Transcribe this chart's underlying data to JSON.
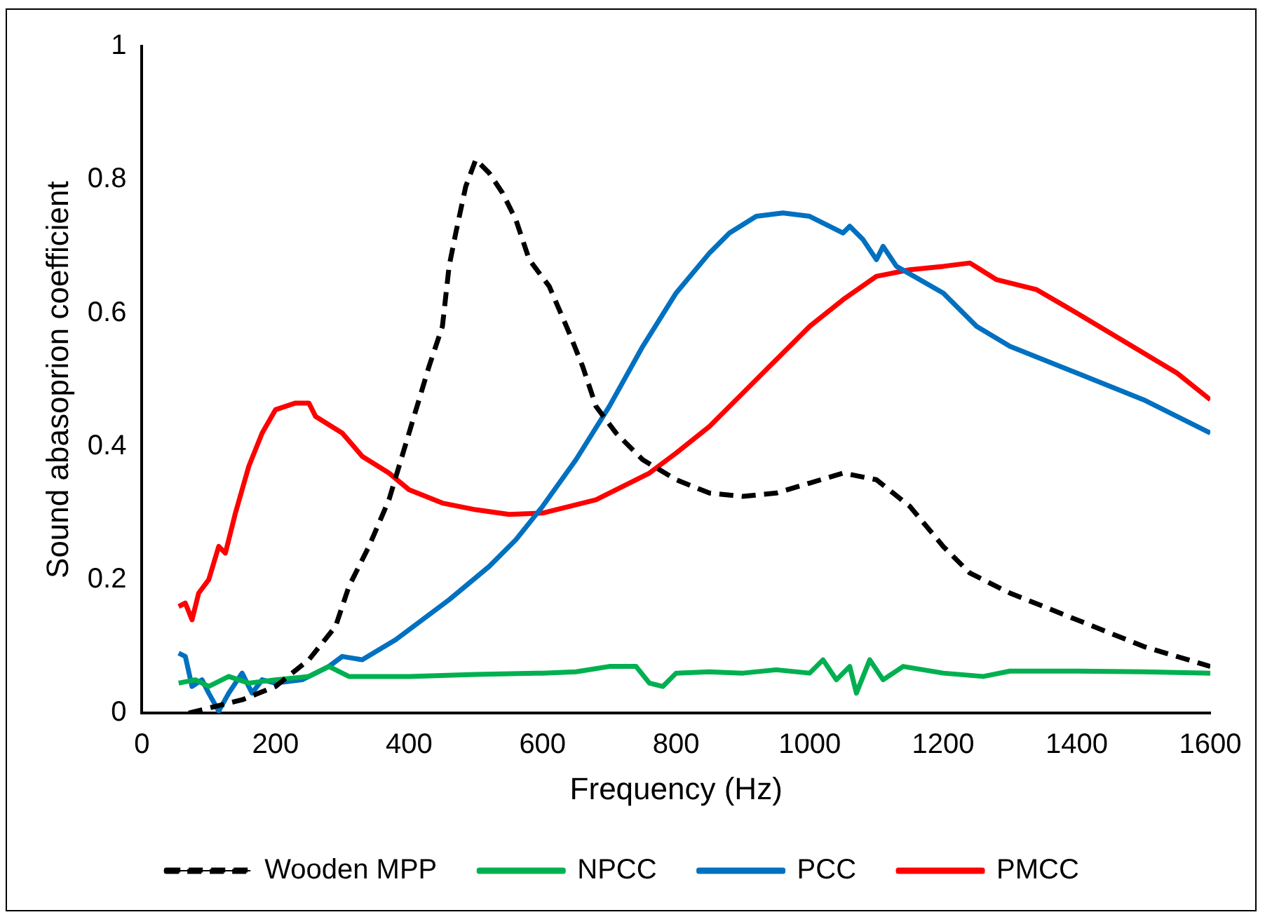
{
  "chart_data": {
    "type": "line",
    "xlabel": "Frequency (Hz)",
    "ylabel": "Sound abasoprion coefficient",
    "xlim": [
      0,
      1600
    ],
    "xticks": [
      0,
      200,
      400,
      600,
      800,
      1000,
      1200,
      1400,
      1600
    ],
    "ylim": [
      0,
      1
    ],
    "yticks": [
      0,
      0.2,
      0.4,
      0.6,
      0.8,
      1
    ],
    "grid": false,
    "legend": "bottom",
    "marker": "none",
    "series": [
      {
        "name": "Wooden MPP",
        "color": "#000000",
        "line_style": "dashed",
        "x": [
          70,
          150,
          200,
          250,
          290,
          310,
          340,
          370,
          400,
          430,
          450,
          460,
          470,
          485,
          500,
          520,
          540,
          560,
          580,
          610,
          640,
          660,
          680,
          710,
          750,
          800,
          850,
          900,
          950,
          1000,
          1050,
          1100,
          1150,
          1200,
          1240,
          1300,
          1400,
          1500,
          1600
        ],
        "values": [
          0,
          0.02,
          0.04,
          0.08,
          0.13,
          0.19,
          0.25,
          0.32,
          0.42,
          0.52,
          0.58,
          0.67,
          0.72,
          0.79,
          0.83,
          0.81,
          0.78,
          0.74,
          0.68,
          0.64,
          0.57,
          0.52,
          0.46,
          0.42,
          0.38,
          0.35,
          0.33,
          0.325,
          0.33,
          0.345,
          0.36,
          0.35,
          0.31,
          0.25,
          0.21,
          0.18,
          0.14,
          0.1,
          0.07
        ]
      },
      {
        "name": "NPCC",
        "color": "#00b050",
        "line_style": "solid",
        "x": [
          55,
          80,
          100,
          130,
          160,
          200,
          250,
          280,
          310,
          400,
          500,
          600,
          650,
          700,
          740,
          760,
          780,
          800,
          850,
          900,
          950,
          1000,
          1020,
          1040,
          1060,
          1070,
          1090,
          1110,
          1140,
          1200,
          1260,
          1300,
          1400,
          1500,
          1600
        ],
        "values": [
          0.045,
          0.05,
          0.04,
          0.055,
          0.045,
          0.05,
          0.055,
          0.07,
          0.055,
          0.055,
          0.058,
          0.06,
          0.062,
          0.07,
          0.07,
          0.045,
          0.04,
          0.06,
          0.062,
          0.06,
          0.065,
          0.06,
          0.08,
          0.05,
          0.07,
          0.03,
          0.08,
          0.05,
          0.07,
          0.06,
          0.055,
          0.063,
          0.063,
          0.062,
          0.06
        ]
      },
      {
        "name": "PCC",
        "color": "#0070c0",
        "line_style": "solid",
        "x": [
          55,
          65,
          75,
          90,
          100,
          115,
          130,
          150,
          165,
          180,
          200,
          240,
          280,
          300,
          330,
          380,
          420,
          460,
          520,
          560,
          600,
          650,
          700,
          750,
          800,
          850,
          880,
          920,
          960,
          1000,
          1030,
          1050,
          1060,
          1080,
          1100,
          1110,
          1130,
          1200,
          1250,
          1300,
          1400,
          1500,
          1600
        ],
        "values": [
          0.09,
          0.085,
          0.04,
          0.05,
          0.03,
          0.003,
          0.03,
          0.06,
          0.03,
          0.05,
          0.045,
          0.05,
          0.07,
          0.085,
          0.08,
          0.11,
          0.14,
          0.17,
          0.22,
          0.26,
          0.31,
          0.38,
          0.46,
          0.55,
          0.63,
          0.69,
          0.72,
          0.745,
          0.75,
          0.745,
          0.73,
          0.72,
          0.73,
          0.71,
          0.68,
          0.7,
          0.67,
          0.63,
          0.58,
          0.55,
          0.51,
          0.47,
          0.42
        ]
      },
      {
        "name": "PMCC",
        "color": "#ff0000",
        "line_style": "solid",
        "x": [
          55,
          65,
          75,
          85,
          100,
          115,
          125,
          140,
          160,
          180,
          200,
          230,
          250,
          260,
          300,
          330,
          370,
          400,
          450,
          500,
          550,
          600,
          640,
          680,
          720,
          760,
          800,
          850,
          900,
          950,
          1000,
          1050,
          1100,
          1150,
          1200,
          1240,
          1280,
          1340,
          1400,
          1450,
          1500,
          1550,
          1600
        ],
        "values": [
          0.16,
          0.165,
          0.14,
          0.18,
          0.2,
          0.25,
          0.24,
          0.3,
          0.37,
          0.42,
          0.455,
          0.465,
          0.465,
          0.445,
          0.42,
          0.385,
          0.36,
          0.335,
          0.315,
          0.305,
          0.298,
          0.3,
          0.31,
          0.32,
          0.34,
          0.36,
          0.39,
          0.43,
          0.48,
          0.53,
          0.58,
          0.62,
          0.655,
          0.665,
          0.67,
          0.675,
          0.65,
          0.635,
          0.6,
          0.57,
          0.54,
          0.51,
          0.47
        ]
      }
    ]
  }
}
